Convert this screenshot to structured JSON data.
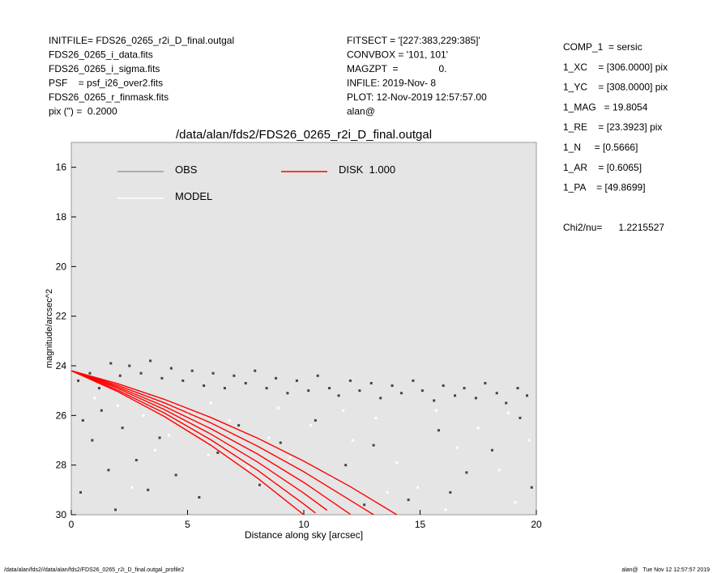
{
  "header": {
    "left": [
      "INITFILE= FDS26_0265_r2i_D_final.outgal",
      "FDS26_0265_i_data.fits",
      "FDS26_0265_i_sigma.fits",
      "PSF    = psf_i26_over2.fits",
      "FDS26_0265_r_finmask.fits",
      "pix (\") =  0.2000"
    ],
    "middle": [
      "FITSECT = '[227:383,229:385]'",
      "CONVBOX = '101, 101'",
      "MAGZPT  =               0.",
      "INFILE: 2019-Nov- 8",
      "PLOT: 12-Nov-2019 12:57:57.00",
      "alan@"
    ],
    "right": [
      "COMP_1  = sersic",
      "1_XC    = [306.0000] pix",
      "1_YC    = [308.0000] pix",
      "1_MAG   = 19.8054",
      "1_RE    = [23.3923] pix",
      "1_N     = [0.5666]",
      "1_AR    = [0.6065]",
      "1_PA    = [49.8699]"
    ],
    "chi2": "Chi2/nu=      1.2215527"
  },
  "chart_data": {
    "type": "scatter",
    "title": "/data/alan/fds2/FDS26_0265_r2i_D_final.outgal",
    "x_label": "Distance along sky [arcsec]",
    "y_label": "magnitude/arcsec^2",
    "xlim": [
      0,
      20
    ],
    "xticks": [
      0,
      5,
      10,
      15,
      20
    ],
    "ylim": [
      30,
      15
    ],
    "yticks": [
      16,
      18,
      20,
      22,
      24,
      26,
      28,
      30
    ],
    "background": "#e5e5e5",
    "series": [
      {
        "name": "OBS",
        "color": "#444444",
        "legend_color": "#999999",
        "x": [
          0.3,
          0.8,
          1.2,
          1.7,
          2.1,
          2.5,
          3.0,
          3.4,
          3.9,
          4.3,
          4.8,
          5.2,
          5.7,
          6.1,
          6.6,
          7.0,
          7.5,
          7.9,
          8.4,
          8.8,
          9.3,
          9.7,
          10.2,
          10.6,
          11.1,
          11.5,
          12.0,
          12.4,
          12.9,
          13.3,
          13.8,
          14.2,
          14.7,
          15.1,
          15.6,
          16.0,
          16.5,
          16.9,
          17.4,
          17.8,
          18.3,
          18.7,
          19.2,
          19.6,
          0.5,
          0.9,
          1.3,
          1.6,
          0.4,
          2.2,
          2.8,
          3.3,
          1.9,
          3.8,
          4.5,
          5.5,
          6.3,
          7.2,
          8.1,
          9.0,
          10.5,
          11.8,
          13.0,
          14.5,
          15.8,
          17.0,
          18.1,
          19.3,
          19.8,
          12.6,
          16.3
        ],
        "values": [
          24.6,
          24.3,
          24.9,
          23.9,
          24.4,
          24.0,
          24.3,
          23.8,
          24.5,
          24.1,
          24.6,
          24.2,
          24.8,
          24.3,
          24.9,
          24.4,
          24.7,
          24.2,
          24.9,
          24.5,
          25.1,
          24.6,
          25.0,
          24.4,
          24.9,
          25.2,
          24.6,
          25.0,
          24.7,
          25.3,
          24.8,
          25.1,
          24.6,
          25.0,
          25.4,
          24.8,
          25.2,
          24.9,
          25.3,
          24.7,
          25.1,
          25.5,
          24.9,
          25.2,
          26.2,
          27.0,
          25.8,
          28.2,
          29.1,
          26.5,
          27.8,
          29.0,
          29.8,
          26.9,
          28.4,
          29.3,
          27.5,
          26.4,
          28.8,
          27.1,
          26.2,
          28.0,
          27.2,
          29.4,
          26.6,
          28.3,
          27.4,
          26.1,
          28.9,
          29.6,
          29.1
        ]
      },
      {
        "name": "MODEL",
        "color": "#ffffff",
        "legend_color": "#ffffff",
        "x": [
          1.0,
          2.0,
          3.1,
          4.2,
          5.0,
          5.9,
          6.8,
          7.6,
          8.5,
          9.4,
          10.3,
          11.2,
          12.1,
          13.1,
          14.0,
          14.9,
          15.7,
          16.6,
          17.5,
          18.4,
          19.1,
          19.7,
          3.6,
          6.0,
          8.9,
          11.7,
          13.6,
          16.1,
          18.8,
          2.6
        ],
        "values": [
          25.3,
          25.6,
          26.0,
          26.8,
          25.9,
          27.6,
          26.2,
          28.1,
          26.9,
          27.7,
          26.4,
          28.5,
          27.0,
          26.1,
          27.9,
          28.9,
          25.8,
          27.3,
          26.5,
          28.2,
          29.5,
          27.0,
          27.4,
          25.5,
          25.7,
          25.8,
          29.1,
          29.8,
          25.9,
          28.9
        ]
      },
      {
        "name": "DISK  1.000",
        "color": "#ff0000",
        "legend_color": "#ff0000",
        "lines": [
          {
            "x": [
              0,
              2,
              4,
              6,
              8,
              10
            ],
            "values": [
              24.2,
              25.04,
              26.04,
              27.2,
              28.52,
              30
            ]
          },
          {
            "x": [
              0,
              2,
              4,
              6,
              8,
              10,
              10.5
            ],
            "values": [
              24.2,
              24.98,
              25.9,
              26.98,
              28.2,
              29.57,
              29.93
            ]
          },
          {
            "x": [
              0,
              2,
              4,
              6,
              8,
              10,
              11
            ],
            "values": [
              24.2,
              24.91,
              25.76,
              26.75,
              27.87,
              29.13,
              29.82
            ]
          },
          {
            "x": [
              0,
              2,
              4,
              6,
              8,
              10,
              12
            ],
            "values": [
              24.2,
              24.85,
              25.63,
              26.53,
              27.55,
              28.7,
              29.98
            ]
          },
          {
            "x": [
              0,
              2,
              4,
              6,
              8,
              10,
              12,
              13
            ],
            "values": [
              24.2,
              24.79,
              25.49,
              26.3,
              27.23,
              28.27,
              29.42,
              30
            ]
          },
          {
            "x": [
              0,
              2,
              4,
              6,
              8,
              10,
              12,
              14
            ],
            "values": [
              24.2,
              24.72,
              25.35,
              26.08,
              26.91,
              27.84,
              28.87,
              30
            ]
          }
        ]
      }
    ]
  },
  "footer": {
    "left": "/data/alan/fds2//data/alan/fds2/FDS26_0265_r2i_D_final.outgal_profile2",
    "right": "alan@   Tue Nov 12 12:57:57 2019"
  }
}
